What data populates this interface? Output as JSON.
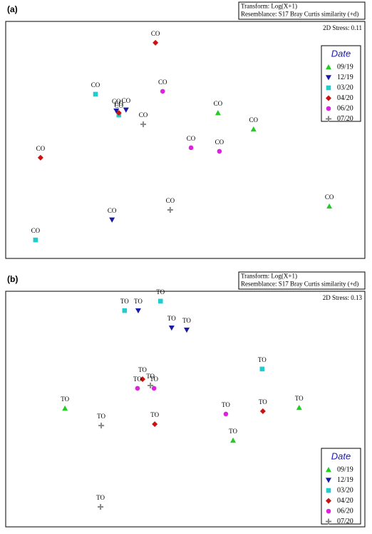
{
  "chart_data": [
    {
      "type": "scatter",
      "panel_label": "(a)",
      "transform": "Transform: Log(X+1)",
      "resemblance": "Resemblance: S17 Bray Curtis similarity (+d)",
      "stress": "2D Stress: 0.11",
      "legend_title": "Date",
      "legend_position": "upper right",
      "xlim": [
        0,
        100
      ],
      "ylim": [
        0,
        100
      ],
      "series": [
        {
          "name": "09/19",
          "color": "#22cc22",
          "marker": "triangle-up",
          "x": [
            59.1,
            69.0,
            90.1
          ],
          "y": [
            61.4,
            54.5,
            22.0
          ],
          "labels": [
            "CO",
            "CO",
            "CO"
          ]
        },
        {
          "name": "12/19",
          "color": "#1a1aa8",
          "marker": "triangle-down",
          "x": [
            30.8,
            33.5,
            29.6
          ],
          "y": [
            62.3,
            62.7,
            16.3
          ],
          "labels": [
            "CO",
            "CO",
            "CO"
          ]
        },
        {
          "name": "03/20",
          "color": "#22cccc",
          "marker": "square",
          "x": [
            25.0,
            31.5,
            8.3
          ],
          "y": [
            69.3,
            60.5,
            7.8
          ],
          "labels": [
            "CO",
            "CO",
            "CO"
          ]
        },
        {
          "name": "04/20",
          "color": "#cc1111",
          "marker": "diamond",
          "x": [
            41.7,
            31.5,
            9.7
          ],
          "y": [
            91.0,
            61.4,
            42.5
          ],
          "labels": [
            "CO",
            "CO",
            "CO"
          ]
        },
        {
          "name": "06/20",
          "color": "#dd22dd",
          "marker": "circle",
          "x": [
            43.7,
            51.6,
            59.5
          ],
          "y": [
            70.5,
            46.7,
            45.2
          ],
          "labels": [
            "CO",
            "CO",
            "CO"
          ]
        },
        {
          "name": "07/20",
          "color": "#888888",
          "marker": "plus",
          "x": [
            38.3,
            45.8
          ],
          "y": [
            56.6,
            20.5
          ],
          "labels": [
            "CO",
            "CO"
          ]
        }
      ]
    },
    {
      "type": "scatter",
      "panel_label": "(b)",
      "transform": "Transform: Log(X+1)",
      "resemblance": "Resemblance: S17 Bray Curtis similarity (+d)",
      "stress": "2D Stress: 0.13",
      "legend_title": "Date",
      "legend_position": "lower right",
      "xlim": [
        0,
        100
      ],
      "ylim": [
        0,
        100
      ],
      "series": [
        {
          "name": "09/19",
          "color": "#22cc22",
          "marker": "triangle-up",
          "x": [
            16.5,
            63.3,
            81.7
          ],
          "y": [
            50.3,
            36.7,
            50.6
          ],
          "labels": [
            "TO",
            "TO",
            "TO"
          ]
        },
        {
          "name": "12/19",
          "color": "#1a1aa8",
          "marker": "triangle-down",
          "x": [
            36.9,
            46.2,
            50.4
          ],
          "y": [
            91.8,
            84.5,
            83.6
          ],
          "labels": [
            "TO",
            "TO",
            "TO"
          ]
        },
        {
          "name": "03/20",
          "color": "#22cccc",
          "marker": "square",
          "x": [
            33.1,
            43.1,
            71.4
          ],
          "y": [
            91.8,
            95.8,
            67.0
          ],
          "labels": [
            "TO",
            "TO",
            "TO"
          ]
        },
        {
          "name": "04/20",
          "color": "#cc1111",
          "marker": "diamond",
          "x": [
            38.1,
            41.5,
            71.6
          ],
          "y": [
            62.7,
            43.6,
            49.1
          ],
          "labels": [
            "TO",
            "TO",
            "TO"
          ]
        },
        {
          "name": "06/20",
          "color": "#dd22dd",
          "marker": "circle",
          "x": [
            36.7,
            41.3,
            61.3
          ],
          "y": [
            58.8,
            58.8,
            47.9
          ],
          "labels": [
            "TO",
            "TO",
            "TO"
          ]
        },
        {
          "name": "07/20",
          "color": "#888888",
          "marker": "plus",
          "x": [
            40.3,
            26.6,
            26.4
          ],
          "y": [
            60.0,
            43.0,
            8.5
          ],
          "labels": [
            "TO",
            "TO",
            "TO"
          ]
        }
      ]
    }
  ]
}
